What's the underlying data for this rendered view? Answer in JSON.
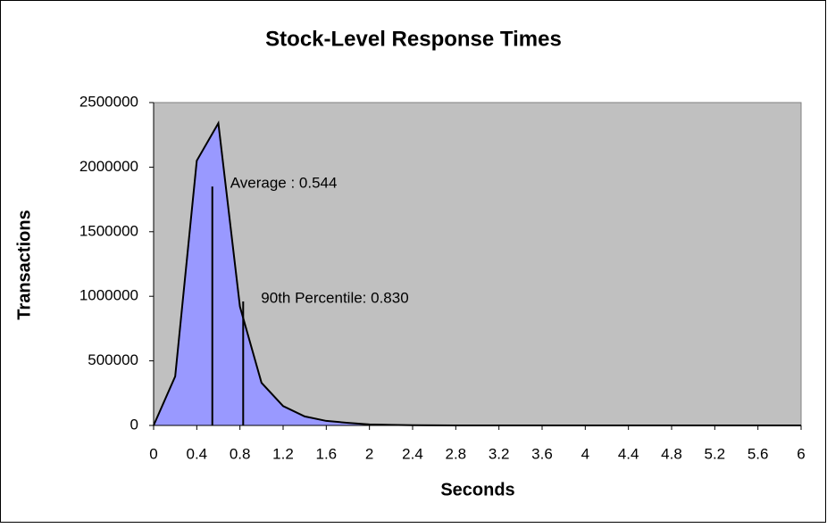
{
  "chart_data": {
    "type": "area",
    "title": "Stock-Level Response Times",
    "xlabel": "Seconds",
    "ylabel": "Transactions",
    "x": [
      0,
      0.2,
      0.4,
      0.6,
      0.8,
      1,
      1.2,
      1.4,
      1.6,
      1.8,
      2,
      2.2,
      2.4,
      2.6,
      2.8,
      3,
      3.2,
      3.4,
      3.6,
      3.8,
      4,
      4.2,
      4.4,
      4.6,
      4.8,
      5,
      5.2,
      5.4,
      5.6,
      5.8,
      6
    ],
    "values": [
      0,
      380000,
      2050000,
      2340000,
      920000,
      330000,
      150000,
      70000,
      35000,
      20000,
      8000,
      4000,
      2000,
      1000,
      0,
      0,
      0,
      0,
      0,
      0,
      0,
      0,
      0,
      0,
      0,
      0,
      0,
      0,
      0,
      0,
      0
    ],
    "color": "#9999ff",
    "xlim": [
      0,
      6
    ],
    "xticks": [
      0,
      0.4,
      0.8,
      1.2,
      1.6,
      2,
      2.4,
      2.8,
      3.2,
      3.6,
      4,
      4.4,
      4.8,
      5.2,
      5.6,
      6
    ],
    "ylim": [
      0,
      2500000
    ],
    "yticks": [
      0,
      500000,
      1000000,
      1500000,
      2000000,
      2500000
    ],
    "markers": [
      {
        "label": "Average : 0.544",
        "x": 0.544,
        "height": 1850000
      },
      {
        "label": "90th Percentile: 0.830",
        "x": 0.83,
        "height": 960000
      }
    ]
  }
}
